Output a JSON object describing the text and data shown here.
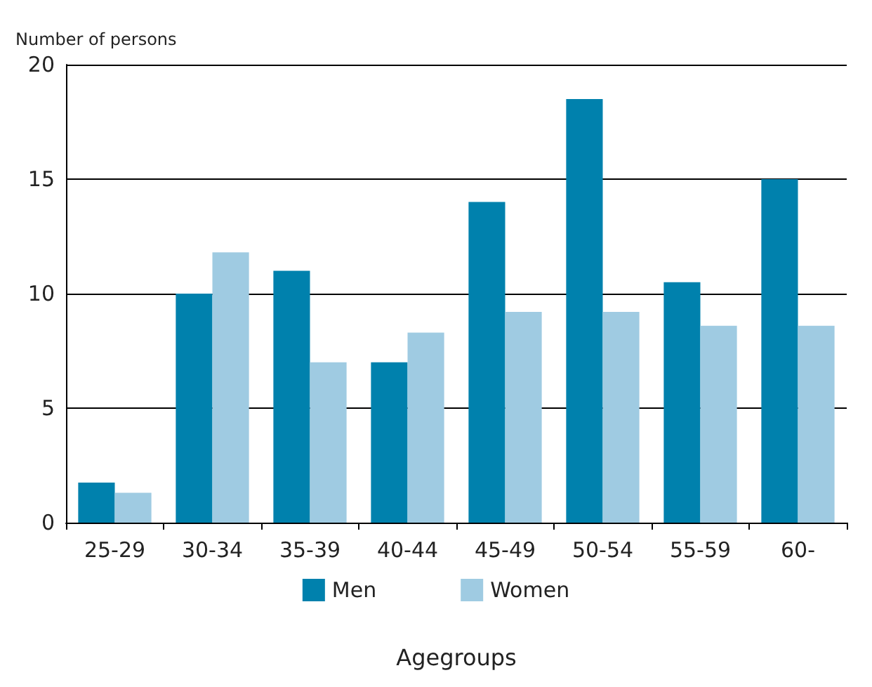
{
  "chart_data": {
    "type": "bar",
    "ylabel": "Number of persons",
    "xlabel": "Agegroups",
    "categories": [
      "25-29",
      "30-34",
      "35-39",
      "40-44",
      "45-49",
      "50-54",
      "55-59",
      "60-"
    ],
    "series": [
      {
        "name": "Men",
        "color": "#0081ad",
        "values": [
          1.75,
          10,
          11,
          7,
          14,
          18.5,
          10.5,
          15
        ]
      },
      {
        "name": "Women",
        "color": "#9fcbe2",
        "values": [
          1.3,
          11.8,
          7,
          8.3,
          9.2,
          9.2,
          8.6,
          8.6
        ]
      }
    ],
    "ylim": [
      0,
      20
    ],
    "yticks": [
      0,
      5,
      10,
      15,
      20
    ],
    "grid": "y",
    "legend": "bottom"
  }
}
